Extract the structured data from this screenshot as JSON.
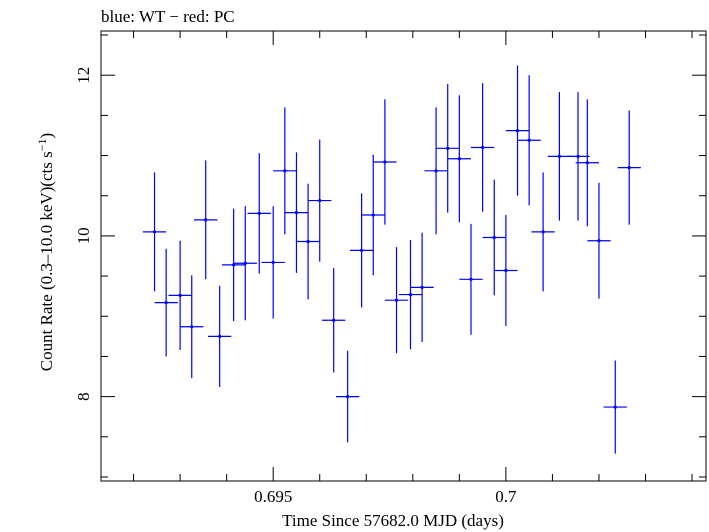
{
  "chart_data": {
    "type": "scatter",
    "title": "blue: WT − red: PC",
    "xlabel": "Time Since 57682.0 MJD (days)",
    "ylabel_main": "Count Rate (0.3–10.0 keV)(cts s",
    "ylabel_sup": "−1",
    "ylabel_end": ")",
    "xlim": [
      0.6913,
      0.7043
    ],
    "ylim": [
      6.95,
      12.55
    ],
    "xticks": [
      {
        "value": 0.695,
        "label": "0.695"
      },
      {
        "value": 0.7,
        "label": "0.7"
      }
    ],
    "x_minor_step": 0.001,
    "yticks": [
      {
        "value": 8,
        "label": "8"
      },
      {
        "value": 10,
        "label": "10"
      },
      {
        "value": 12,
        "label": "12"
      }
    ],
    "y_minor_step": 0.5,
    "series": [
      {
        "name": "WT",
        "color": "#0000ff",
        "xerr": 0.00025,
        "points": [
          {
            "x": 0.69245,
            "y": 10.05,
            "err": 0.74
          },
          {
            "x": 0.6927,
            "y": 9.17,
            "err": 0.67
          },
          {
            "x": 0.693,
            "y": 9.26,
            "err": 0.68
          },
          {
            "x": 0.69325,
            "y": 8.87,
            "err": 0.64
          },
          {
            "x": 0.69355,
            "y": 10.2,
            "err": 0.74
          },
          {
            "x": 0.69385,
            "y": 8.75,
            "err": 0.63
          },
          {
            "x": 0.69415,
            "y": 9.64,
            "err": 0.7
          },
          {
            "x": 0.6944,
            "y": 9.66,
            "err": 0.71
          },
          {
            "x": 0.6947,
            "y": 10.28,
            "err": 0.75
          },
          {
            "x": 0.695,
            "y": 9.67,
            "err": 0.7
          },
          {
            "x": 0.69525,
            "y": 10.81,
            "err": 0.79
          },
          {
            "x": 0.6955,
            "y": 10.29,
            "err": 0.75
          },
          {
            "x": 0.69575,
            "y": 9.93,
            "err": 0.72
          },
          {
            "x": 0.696,
            "y": 10.44,
            "err": 0.76
          },
          {
            "x": 0.6963,
            "y": 8.95,
            "err": 0.65
          },
          {
            "x": 0.6966,
            "y": 8.0,
            "err": 0.57
          },
          {
            "x": 0.6969,
            "y": 9.82,
            "err": 0.71
          },
          {
            "x": 0.69715,
            "y": 10.26,
            "err": 0.75
          },
          {
            "x": 0.6974,
            "y": 10.92,
            "err": 0.78
          },
          {
            "x": 0.69765,
            "y": 9.2,
            "err": 0.66
          },
          {
            "x": 0.69795,
            "y": 9.27,
            "err": 0.68
          },
          {
            "x": 0.6982,
            "y": 9.36,
            "err": 0.68
          },
          {
            "x": 0.6985,
            "y": 10.81,
            "err": 0.79
          },
          {
            "x": 0.69875,
            "y": 11.09,
            "err": 0.8
          },
          {
            "x": 0.699,
            "y": 10.96,
            "err": 0.79
          },
          {
            "x": 0.69925,
            "y": 9.46,
            "err": 0.69
          },
          {
            "x": 0.6995,
            "y": 11.1,
            "err": 0.8
          },
          {
            "x": 0.69975,
            "y": 9.98,
            "err": 0.72
          },
          {
            "x": 0.7,
            "y": 9.57,
            "err": 0.69
          },
          {
            "x": 0.70025,
            "y": 11.31,
            "err": 0.81
          },
          {
            "x": 0.7005,
            "y": 11.19,
            "err": 0.81
          },
          {
            "x": 0.7008,
            "y": 10.05,
            "err": 0.74
          },
          {
            "x": 0.70115,
            "y": 10.99,
            "err": 0.8
          },
          {
            "x": 0.70155,
            "y": 10.99,
            "err": 0.8
          },
          {
            "x": 0.70175,
            "y": 10.91,
            "err": 0.79
          },
          {
            "x": 0.702,
            "y": 9.94,
            "err": 0.72
          },
          {
            "x": 0.70235,
            "y": 7.87,
            "err": 0.58
          },
          {
            "x": 0.70265,
            "y": 10.85,
            "err": 0.71
          }
        ]
      }
    ]
  }
}
